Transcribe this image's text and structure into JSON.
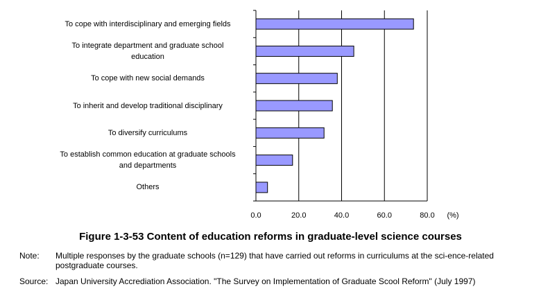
{
  "chart_data": {
    "type": "bar",
    "orientation": "horizontal",
    "categories": [
      "To cope with interdisciplinary and emerging fields",
      "To integrate department and graduate school education",
      "To cope with new social demands",
      "To inherit and develop traditional disciplinary",
      "To diversify curriculums",
      "To establish common education at graduate schools and departments",
      "Others"
    ],
    "category_lines": [
      [
        "To cope with interdisciplinary and emerging fields"
      ],
      [
        "To integrate department and graduate school",
        "education"
      ],
      [
        "To cope with new social demands"
      ],
      [
        "To inherit and develop traditional disciplinary"
      ],
      [
        "To diversify curriculums"
      ],
      [
        "To establish common education at graduate schools",
        "and departments"
      ],
      [
        "Others"
      ]
    ],
    "values": [
      73.6,
      45.7,
      38.0,
      35.7,
      31.8,
      17.1,
      5.4
    ],
    "xlim": [
      0,
      80
    ],
    "xticks": [
      "0.0",
      "20.0",
      "40.0",
      "60.0",
      "80.0"
    ],
    "xunit": "(%)",
    "grid": true,
    "bar_color": "#9999ff"
  },
  "caption": "Figure 1-3-53 Content of education reforms in graduate-level science courses",
  "note": {
    "label": "Note:",
    "text": "Multiple responses by the graduate schools (n=129) that have carried out reforms in curriculums at the sci-ence-related postgraduate courses."
  },
  "source": {
    "label": "Source:",
    "text": "Japan University Accrediation Association. \"The Survey on Implementation of Graduate Scool Reform\" (July 1997)"
  }
}
